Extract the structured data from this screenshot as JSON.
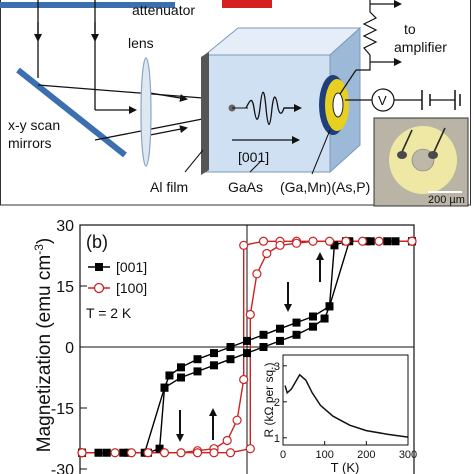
{
  "panel_a": {
    "labels": {
      "attenuator": "attenuator",
      "lens": "lens",
      "xy_scan_line1": "x-y scan",
      "xy_scan_line2": "mirrors",
      "to": "to",
      "amplifier": "amplifier",
      "direction": "[001]",
      "al_film": "Al film",
      "gaas": "GaAs",
      "sample": "(Ga,Mn)(As,P)",
      "voltmeter": "V",
      "scalebar": "200 µm"
    },
    "colors": {
      "mirror": "#3b6fb0",
      "arrow_red": "#d42020",
      "cube_front": "#cfe0f2",
      "cube_side": "#9db9d8",
      "cube_top": "#e5eef8",
      "al_film": "#555555",
      "contact_yellow": "#e8d020",
      "contact_blue": "#1f3e7a"
    }
  },
  "panel_b": {
    "panel_label": "(b)",
    "ylabel": "Magnetization (emu cm",
    "ylabel_sup": "-3",
    "ylabel_close": ")",
    "legend": [
      "[001]",
      "[100]"
    ],
    "temperature": "T = 2 K",
    "inset": {
      "ylabel": "R (kΩ per sq.)",
      "xlabel": "T (K)",
      "yticks": [
        "1",
        "2",
        "3"
      ],
      "xticks": [
        "0",
        "100",
        "200",
        "300"
      ]
    }
  },
  "chart_data": [
    {
      "type": "line",
      "title": "",
      "xlabel": "",
      "ylabel": "Magnetization (emu cm-3)",
      "ylim": [
        -30,
        30
      ],
      "yticks": [
        -30,
        -15,
        0,
        15,
        30
      ],
      "x_tick_labels": "not shown",
      "series": [
        {
          "name": "[001]",
          "color": "#000000",
          "marker": "filled-square",
          "branches": [
            {
              "x": [
                -1.0,
                -0.85,
                -0.72,
                -0.62,
                -0.5,
                -0.4,
                -0.3,
                -0.2,
                -0.1,
                0.0,
                0.1,
                0.2,
                0.3,
                0.4,
                0.47,
                0.5,
                0.53,
                0.6,
                0.75,
                0.9,
                1.0
              ],
              "y": [
                -26,
                -26,
                -26,
                -26,
                -10,
                -7.5,
                -6,
                -4.5,
                -3,
                -1.5,
                0,
                1.5,
                3,
                5,
                7,
                10,
                25,
                26,
                26,
                26,
                26
              ]
            },
            {
              "x": [
                1.0,
                0.85,
                0.72,
                0.62,
                0.5,
                0.4,
                0.3,
                0.2,
                0.1,
                0.0,
                -0.1,
                -0.2,
                -0.3,
                -0.4,
                -0.47,
                -0.5,
                -0.53,
                -0.6,
                -0.75,
                -0.9,
                -1.0
              ],
              "y": [
                26,
                26,
                26,
                26,
                10,
                7.5,
                6,
                4.5,
                3,
                1.5,
                0,
                -1.5,
                -3,
                -5,
                -7,
                -10,
                -25,
                -26,
                -26,
                -26,
                -26
              ]
            }
          ]
        },
        {
          "name": "[100]",
          "color": "#cc2222",
          "marker": "open-circle",
          "branches": [
            {
              "x": [
                -1.0,
                -0.8,
                -0.6,
                -0.4,
                -0.3,
                -0.2,
                -0.12,
                -0.06,
                -0.02,
                -0.02,
                0.1,
                0.2,
                0.3,
                0.5,
                0.7,
                1.0
              ],
              "y": [
                -26,
                -26,
                -26,
                -26,
                -25.5,
                -25,
                -23,
                -18,
                -8,
                25,
                26,
                26,
                26,
                26,
                26,
                26
              ]
            },
            {
              "x": [
                1.0,
                0.8,
                0.6,
                0.4,
                0.3,
                0.2,
                0.12,
                0.06,
                0.02,
                0.02,
                -0.1,
                -0.2,
                -0.3,
                -0.5,
                -0.7,
                -1.0
              ],
              "y": [
                26,
                26,
                26,
                26,
                25.5,
                25,
                23,
                18,
                8,
                -25,
                -26,
                -26,
                -26,
                -26,
                -26,
                -26
              ]
            }
          ]
        }
      ]
    },
    {
      "type": "line",
      "title": "",
      "xlabel": "T (K)",
      "ylabel": "R (kΩ per sq.)",
      "xlim": [
        0,
        300
      ],
      "ylim": [
        0.8,
        3.3
      ],
      "series": [
        {
          "name": "",
          "x": [
            5,
            10,
            20,
            30,
            40,
            55,
            70,
            90,
            120,
            160,
            200,
            250,
            300
          ],
          "y": [
            2.45,
            2.25,
            2.35,
            2.55,
            2.75,
            2.6,
            2.25,
            1.9,
            1.6,
            1.35,
            1.2,
            1.1,
            1.02
          ]
        }
      ]
    }
  ]
}
